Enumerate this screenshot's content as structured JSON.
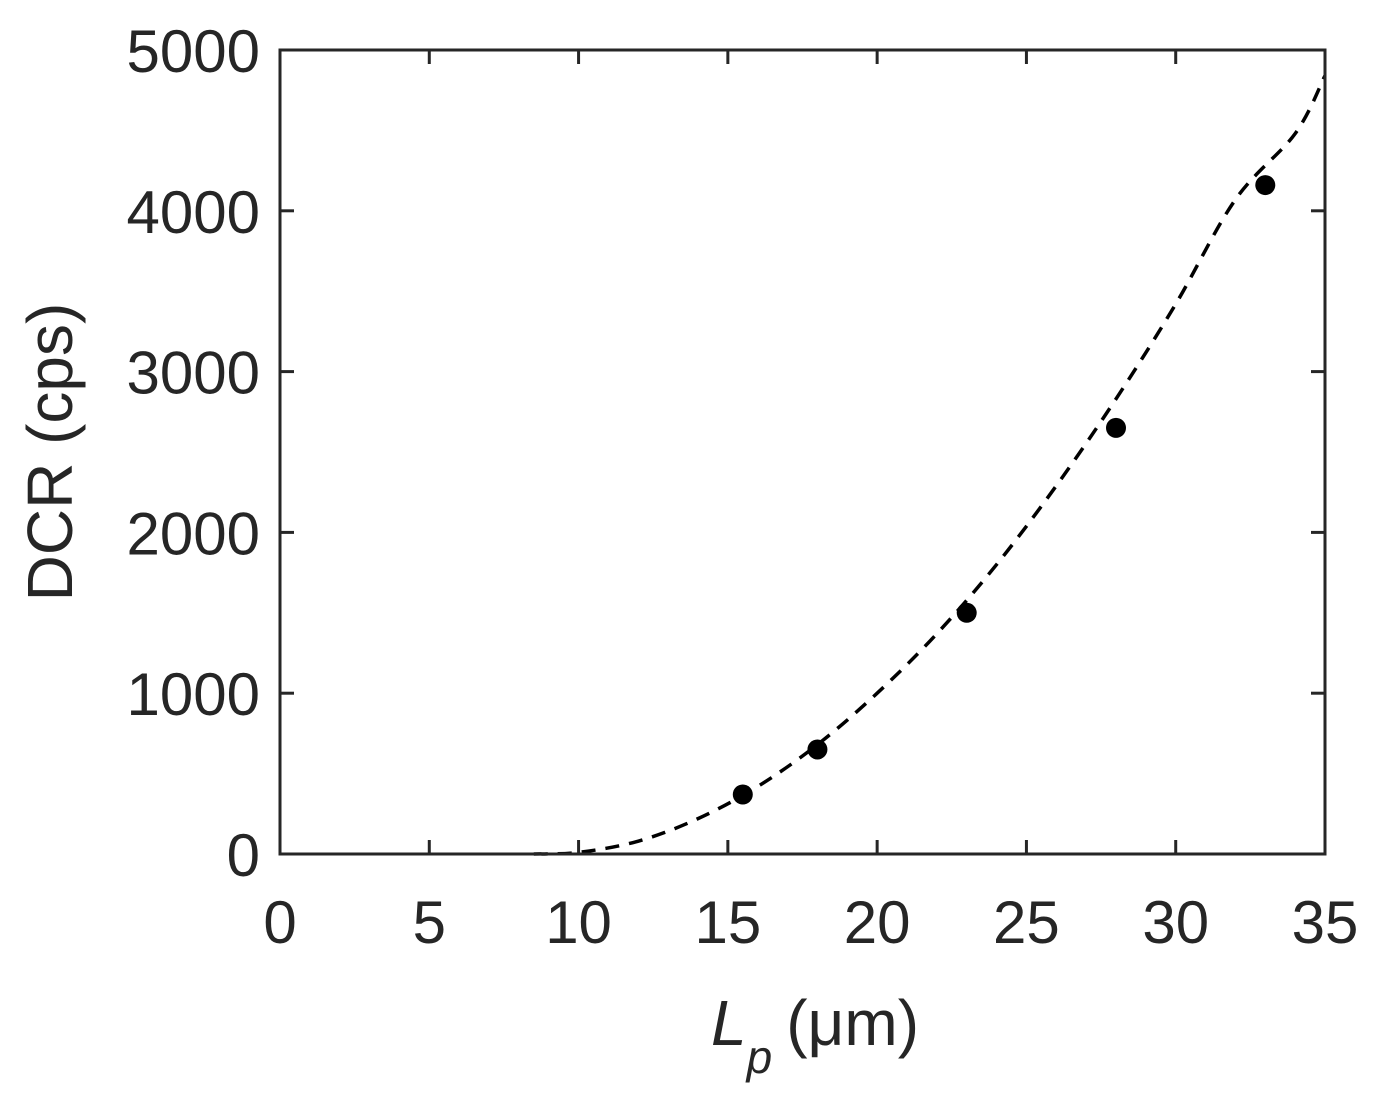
{
  "chart_data": {
    "type": "scatter",
    "xlabel_main": "L",
    "xlabel_sub": "p",
    "xlabel_unit": "(μm)",
    "ylabel": "DCR (cps)",
    "xlim": [
      0,
      35
    ],
    "ylim": [
      0,
      5000
    ],
    "xticks": [
      0,
      5,
      10,
      15,
      20,
      25,
      30,
      35
    ],
    "yticks": [
      0,
      1000,
      2000,
      3000,
      4000,
      5000
    ],
    "grid": false,
    "series": [
      {
        "kind": "markers",
        "color": "#000000",
        "points": [
          {
            "x": 15.5,
            "y": 370
          },
          {
            "x": 18,
            "y": 650
          },
          {
            "x": 23,
            "y": 1500
          },
          {
            "x": 28,
            "y": 2650
          },
          {
            "x": 33,
            "y": 4160
          }
        ]
      },
      {
        "kind": "fit",
        "style": "dashed",
        "color": "#000000",
        "points": [
          {
            "x": 8.5,
            "y": 0
          },
          {
            "x": 10,
            "y": 10
          },
          {
            "x": 12,
            "y": 80
          },
          {
            "x": 14,
            "y": 220
          },
          {
            "x": 16,
            "y": 420
          },
          {
            "x": 18,
            "y": 680
          },
          {
            "x": 20,
            "y": 1000
          },
          {
            "x": 22,
            "y": 1370
          },
          {
            "x": 24,
            "y": 1800
          },
          {
            "x": 26,
            "y": 2290
          },
          {
            "x": 28,
            "y": 2830
          },
          {
            "x": 30,
            "y": 3420
          },
          {
            "x": 32,
            "y": 4070
          },
          {
            "x": 34,
            "y": 4480
          },
          {
            "x": 35,
            "y": 4840
          }
        ]
      }
    ]
  }
}
